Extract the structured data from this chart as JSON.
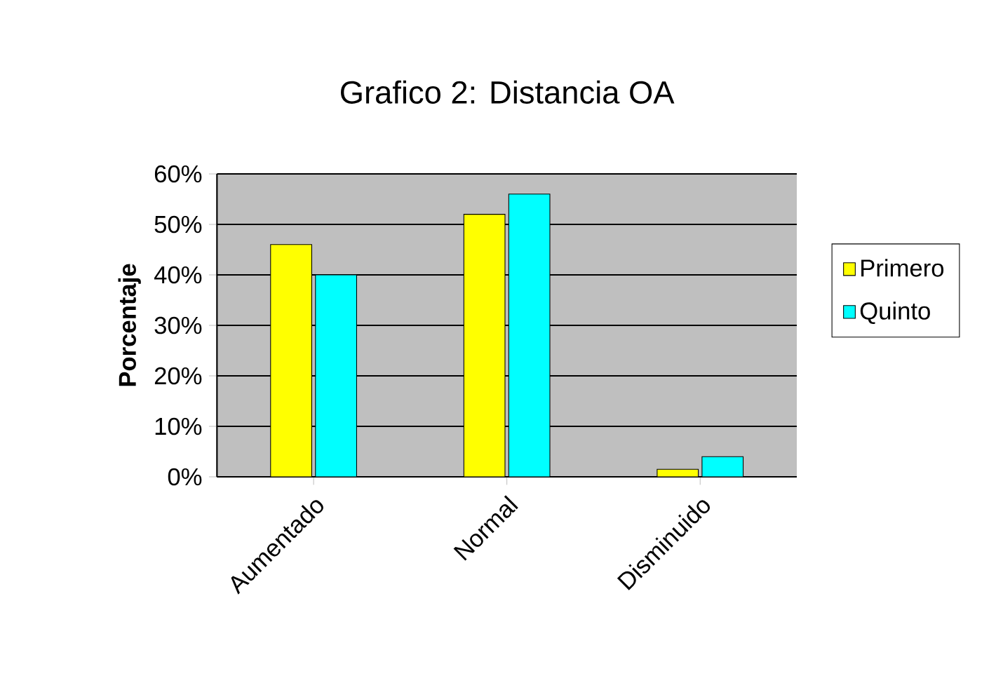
{
  "chart_data": {
    "type": "bar",
    "title": "Grafico 2: Distancia OA",
    "ylabel": "Porcentaje",
    "categories": [
      "Aumentado",
      "Normal",
      "Disminuido"
    ],
    "series": [
      {
        "name": "Primero",
        "color": "#ffff00",
        "values": [
          46,
          52,
          1.5
        ]
      },
      {
        "name": "Quinto",
        "color": "#00ffff",
        "values": [
          40,
          56,
          4
        ]
      }
    ],
    "ylim": [
      0,
      60
    ],
    "yticks": [
      {
        "value": 0,
        "label": "0%"
      },
      {
        "value": 10,
        "label": "10%"
      },
      {
        "value": 20,
        "label": "20%"
      },
      {
        "value": 30,
        "label": "30%"
      },
      {
        "value": 40,
        "label": "40%"
      },
      {
        "value": 50,
        "label": "50%"
      },
      {
        "value": 60,
        "label": "60%"
      }
    ],
    "grid": "y",
    "legend": "right"
  }
}
